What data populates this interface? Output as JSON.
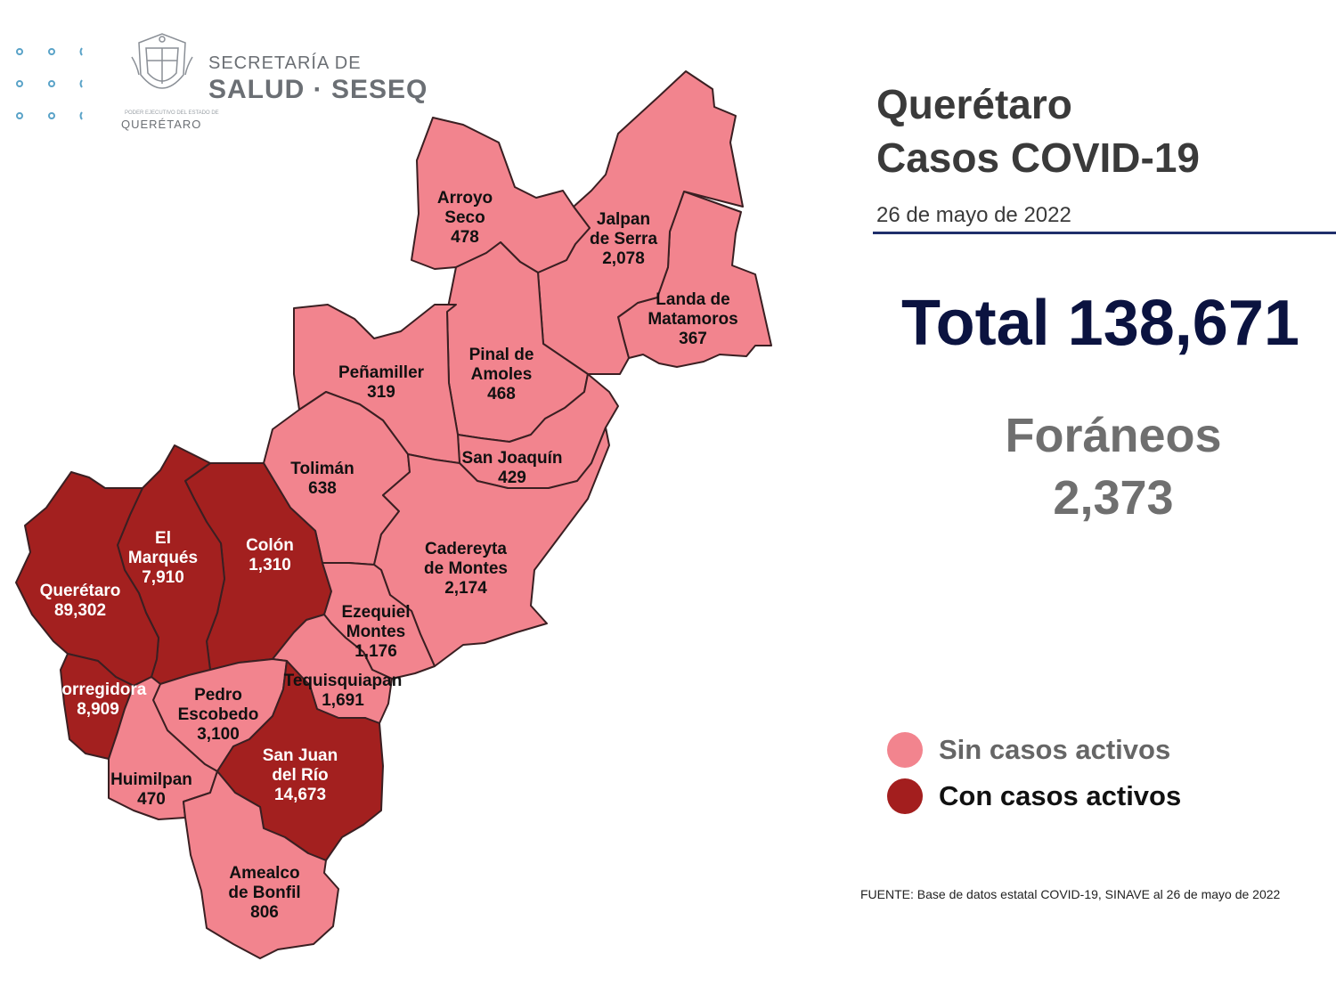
{
  "header": {
    "org_line1": "SECRETARÍA DE",
    "org_line2": "SALUD · SESEQ",
    "seal_caption": "QUERÉTARO",
    "seal_small_text": "PODER EJECUTIVO DEL ESTADO DE",
    "seal_icon": "state-coat-of-arms-icon"
  },
  "panel": {
    "title_line1": "Querétaro",
    "title_line2": "Casos COVID-19",
    "date": "26 de mayo de 2022",
    "total_text": "Total 138,671",
    "foraneos_label": "Foráneos",
    "foraneos_value": "2,373",
    "source": "FUENTE: Base de datos estatal  COVID-19,  SINAVE  al 26 de mayo de 2022"
  },
  "legend": [
    {
      "label": "Sin casos activos",
      "color": "#f2848e",
      "text_color": "#666666"
    },
    {
      "label": "Con casos activos",
      "color": "#a31e1e",
      "text_color": "#111111"
    }
  ],
  "colors": {
    "inactive": "#f2848e",
    "active": "#a3201f",
    "accent_rule": "#1f2f6b"
  },
  "municipalities": [
    {
      "id": "arroyo-seco",
      "name_lines": [
        "Arroyo",
        "Seco"
      ],
      "cases": "478",
      "active": false
    },
    {
      "id": "jalpan-de-serra",
      "name_lines": [
        "Jalpan",
        "de Serra"
      ],
      "cases": "2,078",
      "active": false
    },
    {
      "id": "landa-de-matamoros",
      "name_lines": [
        "Landa de",
        "Matamoros"
      ],
      "cases": "367",
      "active": false
    },
    {
      "id": "pinal-de-amoles",
      "name_lines": [
        "Pinal de",
        "Amoles"
      ],
      "cases": "468",
      "active": false
    },
    {
      "id": "penamiller",
      "name_lines": [
        "Peñamiller"
      ],
      "cases": "319",
      "active": false
    },
    {
      "id": "san-joaquin",
      "name_lines": [
        "San Joaquín"
      ],
      "cases": "429",
      "active": false
    },
    {
      "id": "toliman",
      "name_lines": [
        "Tolimán"
      ],
      "cases": "638",
      "active": false
    },
    {
      "id": "cadereyta-de-montes",
      "name_lines": [
        "Cadereyta",
        "de Montes"
      ],
      "cases": "2,174",
      "active": false
    },
    {
      "id": "el-marques",
      "name_lines": [
        "El",
        "Marqués"
      ],
      "cases": "7,910",
      "active": true
    },
    {
      "id": "colon",
      "name_lines": [
        "Colón"
      ],
      "cases": "1,310",
      "active": true
    },
    {
      "id": "queretaro",
      "name_lines": [
        "Querétaro"
      ],
      "cases": "89,302",
      "active": true
    },
    {
      "id": "ezequiel-montes",
      "name_lines": [
        "Ezequiel",
        "Montes"
      ],
      "cases": "1,176",
      "active": false
    },
    {
      "id": "tequisquiapan",
      "name_lines": [
        "Tequisquiapan"
      ],
      "cases": "1,691",
      "active": false
    },
    {
      "id": "corregidora",
      "name_lines": [
        "Corregidora"
      ],
      "cases": "8,909",
      "active": true
    },
    {
      "id": "pedro-escobedo",
      "name_lines": [
        "Pedro",
        "Escobedo"
      ],
      "cases": "3,100",
      "active": false
    },
    {
      "id": "san-juan-del-rio",
      "name_lines": [
        "San Juan",
        "del Río"
      ],
      "cases": "14,673",
      "active": true
    },
    {
      "id": "huimilpan",
      "name_lines": [
        "Huimilpan"
      ],
      "cases": "470",
      "active": false
    },
    {
      "id": "amealco-de-bonfil",
      "name_lines": [
        "Amealco",
        "de Bonfil"
      ],
      "cases": "806",
      "active": false
    }
  ]
}
